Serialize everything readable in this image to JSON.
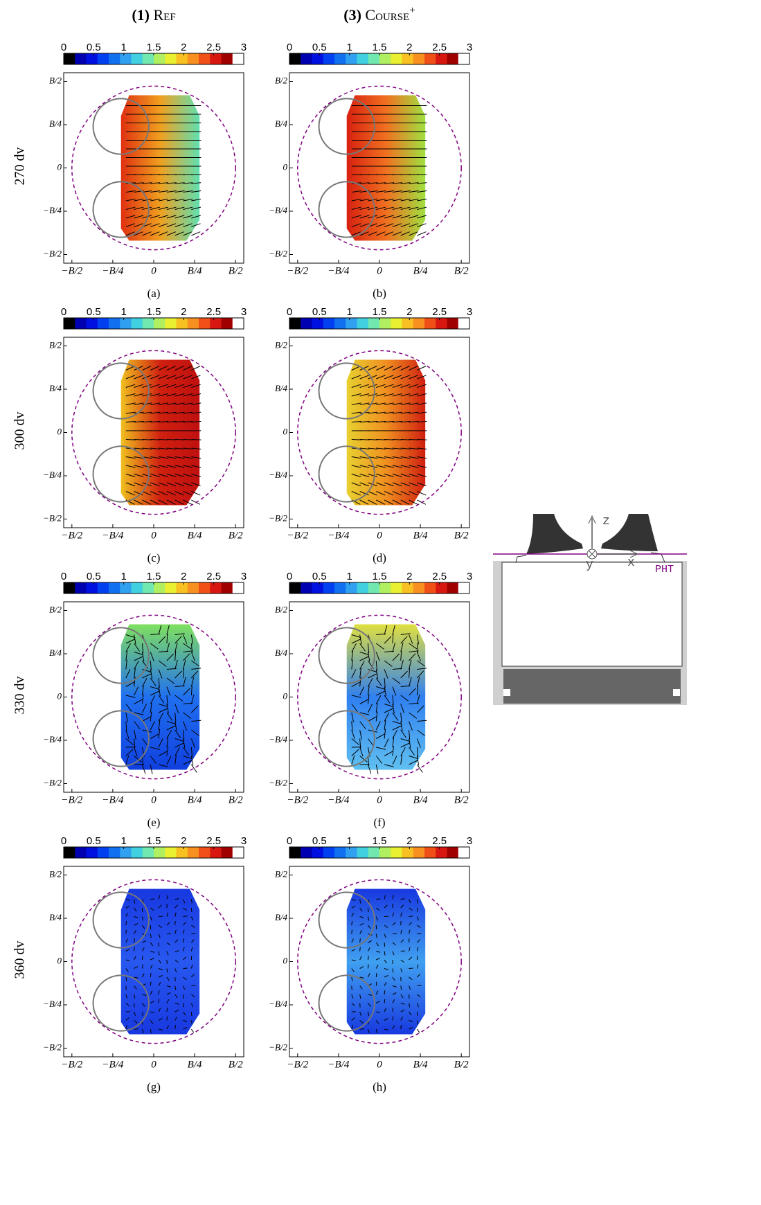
{
  "columns": [
    {
      "number": "(1)",
      "name": "Ref"
    },
    {
      "number": "(3)",
      "name": "Course",
      "sup": "+"
    }
  ],
  "rows": [
    "270 dv",
    "300 dv",
    "330 dv",
    "360 dv"
  ],
  "colorbar": {
    "lim": [
      0,
      3
    ],
    "ticks": [
      0,
      0.5,
      1,
      1.5,
      2,
      2.5,
      3
    ],
    "colors": [
      "#000000",
      "#0000b0",
      "#0010e0",
      "#0040f0",
      "#1070f0",
      "#30a0f0",
      "#40d0e0",
      "#70e8b0",
      "#b0f060",
      "#e8f030",
      "#f8c020",
      "#f89020",
      "#f05018",
      "#d81810",
      "#a00000",
      "#ffffff"
    ]
  },
  "axis": {
    "lim": [
      -0.55,
      0.55
    ],
    "xticks": [
      {
        "value": -0.5,
        "label": "−B/2"
      },
      {
        "value": -0.25,
        "label": "−B/4"
      },
      {
        "value": 0,
        "label": "0"
      },
      {
        "value": 0.25,
        "label": "B/4"
      },
      {
        "value": 0.5,
        "label": "B/2"
      }
    ],
    "yticks": [
      {
        "value": -0.5,
        "label": "−B/2"
      },
      {
        "value": -0.25,
        "label": "−B/4"
      },
      {
        "value": 0,
        "label": "0"
      },
      {
        "value": 0.25,
        "label": "B/4"
      },
      {
        "value": 0.5,
        "label": "B/2"
      }
    ]
  },
  "panels": [
    {
      "label": "(a)",
      "field_colors": [
        "#e03010",
        "#f0a020",
        "#60e0b0"
      ]
    },
    {
      "label": "(b)",
      "field_colors": [
        "#d82010",
        "#f07020",
        "#a0e040"
      ]
    },
    {
      "label": "(c)",
      "field_colors": [
        "#f0c020",
        "#d02010",
        "#c01010"
      ]
    },
    {
      "label": "(d)",
      "field_colors": [
        "#e8d030",
        "#f09020",
        "#d02010"
      ]
    },
    {
      "label": "(e)",
      "field_colors": [
        "#80e060",
        "#2070f0",
        "#1040e0"
      ]
    },
    {
      "label": "(f)",
      "field_colors": [
        "#e0e040",
        "#3080f0",
        "#60c0f0"
      ]
    },
    {
      "label": "(g)",
      "field_colors": [
        "#1838e0",
        "#2858f0",
        "#1838e0"
      ]
    },
    {
      "label": "(h)",
      "field_colors": [
        "#1838e0",
        "#40a0f0",
        "#1838e0"
      ]
    }
  ],
  "diagram": {
    "z": "z",
    "x": "x",
    "y": "y",
    "plane": "PHT"
  }
}
